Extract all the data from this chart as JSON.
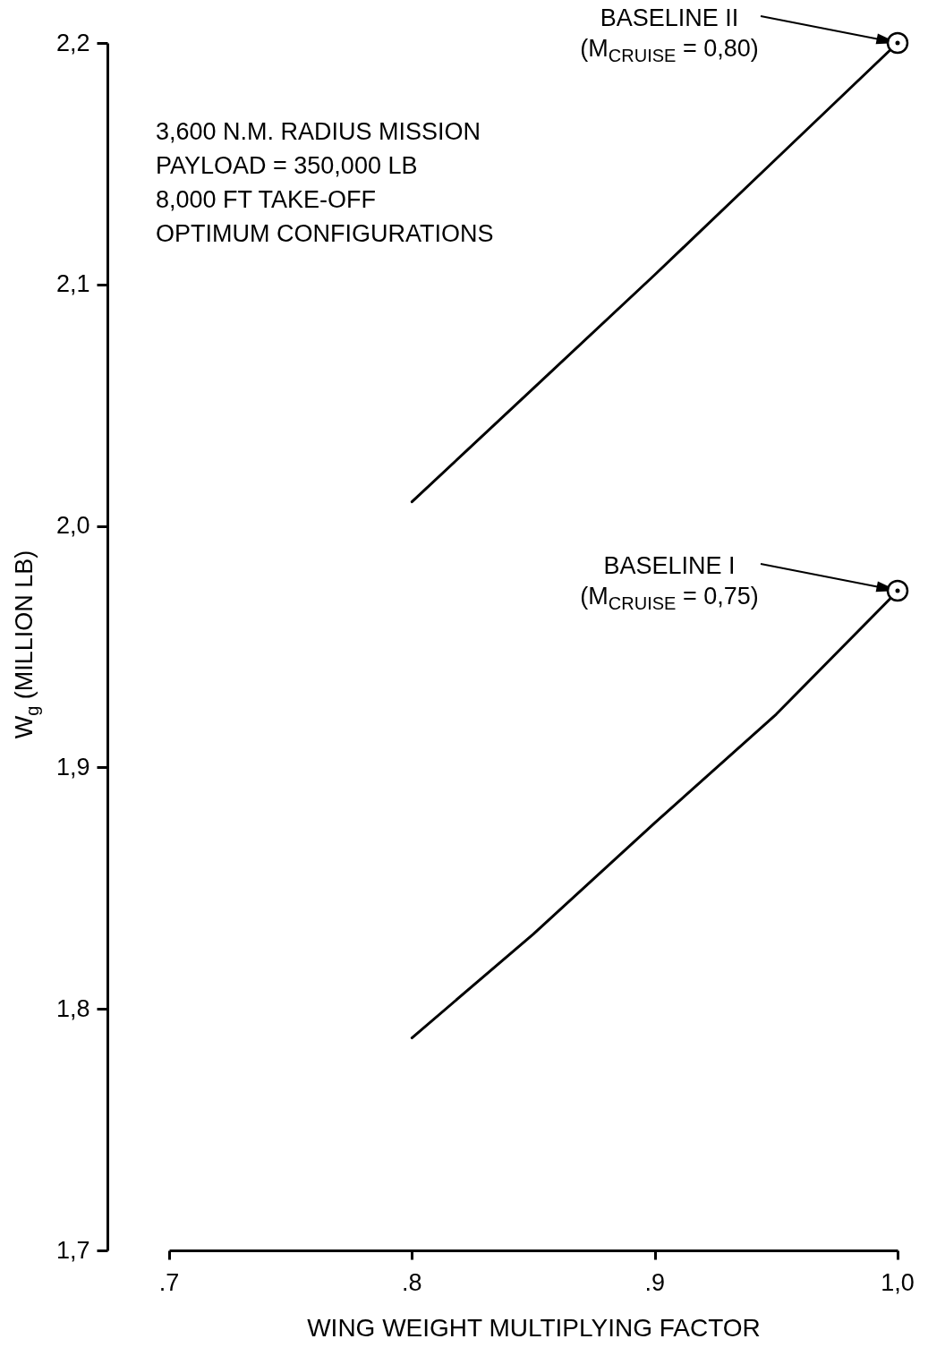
{
  "chart_data": {
    "type": "line",
    "xlabel": "WING WEIGHT MULTIPLYING FACTOR",
    "ylabel": "W$_{g}$ (MILLION LB)",
    "annotations": [
      "3,600 N.M. RADIUS MISSION",
      "PAYLOAD = 350,000 LB",
      "8,000 FT TAKE-OFF",
      "OPTIMUM CONFIGURATIONS",
      {
        "text": "BASELINE II (M$_{CRUISE}$ = 0,80)",
        "x": 1.0,
        "y": 2.2
      },
      {
        "text": "BASELINE I (M$_{CRUISE}$ = 0,75)",
        "x": 1.0,
        "y": 1.973
      }
    ],
    "x": [
      0.8,
      0.85,
      0.9,
      0.95,
      1.0
    ],
    "series": [
      {
        "color": "#000000",
        "values": [
          2.01,
          2.057,
          2.104,
          2.152,
          2.2
        ]
      },
      {
        "color": "#000000",
        "values": [
          1.788,
          1.831,
          1.877,
          1.922,
          1.973
        ]
      }
    ],
    "xlim": [
      0.7,
      1.0
    ],
    "xticks": [
      {
        "value": 0.7,
        "label": ".7"
      },
      {
        "value": 0.8,
        "label": ".8"
      },
      {
        "value": 0.9,
        "label": ".9"
      },
      {
        "value": 1.0,
        "label": "1,0"
      }
    ],
    "ylim": [
      1.7,
      2.2
    ],
    "yticks": [
      {
        "value": 1.7,
        "label": "1,7"
      },
      {
        "value": 1.8,
        "label": "1,8"
      },
      {
        "value": 1.9,
        "label": "1,9"
      },
      {
        "value": 2.0,
        "label": "2,0"
      },
      {
        "value": 2.1,
        "label": "2,1"
      },
      {
        "value": 2.2,
        "label": "2,2"
      }
    ],
    "grid": false,
    "legend": false
  }
}
